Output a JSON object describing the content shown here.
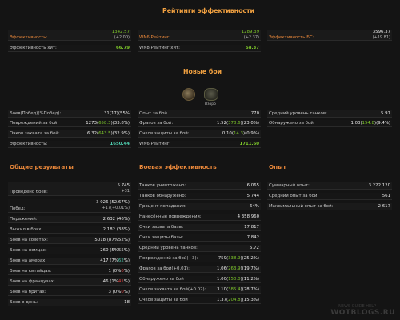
{
  "header": {
    "title": "Рейтинги эффективности"
  },
  "ratings": {
    "left": [
      {
        "label": "Эффективность:",
        "value": "1342.57",
        "delta": "(+2.00)",
        "value_color": "green",
        "label_color": "orange"
      },
      {
        "label": "Эффективность хит:",
        "value": "66.79",
        "delta": "",
        "value_color": "green",
        "label_color": "normal"
      }
    ],
    "mid": [
      {
        "label": "WN6 Рейтинг:",
        "value": "1289.39",
        "delta": "(+2.37)",
        "value_color": "green",
        "label_color": "orange"
      },
      {
        "label": "WN8 Рейтинг хит:",
        "value": "58.37",
        "delta": "",
        "value_color": "green",
        "label_color": "normal"
      }
    ],
    "right": [
      {
        "label": "Эффективность БС:",
        "value": "3596.37",
        "delta": "(+19.81)",
        "value_color": "normal",
        "label_color": "orange"
      }
    ]
  },
  "new_battles": {
    "title": "Новые бои",
    "icons": [
      "tank-icon",
      "emblem-icon"
    ],
    "icon_captions": [
      "",
      "Взорб"
    ],
    "left": [
      {
        "label": "Боев(Побед)(%Побед):",
        "value": "31(17)(55%"
      },
      {
        "label": "Повреждений за бой:",
        "value_a": "1273(",
        "value_hl": "658.3",
        "value_b": ")(33.8%)"
      },
      {
        "label": "Очков захвата за бой:",
        "value_a": "6.32(",
        "value_hl": "643.5",
        "value_b": ")(32.9%)"
      },
      {
        "label": "Эффективность:",
        "value": "1650.44",
        "value_color": "teal"
      }
    ],
    "mid": [
      {
        "label": "Опыт за бой",
        "value": "770"
      },
      {
        "label": "Фрагов за бой:",
        "value_a": "1.52(",
        "value_hl": "378.6",
        "value_b": ")(23.0%)"
      },
      {
        "label": "Очков защиты за бой:",
        "value_a": "0.10(",
        "value_hl": "14.3",
        "value_b": ")(0.9%)"
      },
      {
        "label": "WN6 Рейтинг:",
        "value": "1711.60",
        "value_color": "green"
      }
    ],
    "right": [
      {
        "label": "Средний уровень танков:",
        "value": "5.97"
      },
      {
        "label": "Обнаружено за бой:",
        "value_a": "1.03(",
        "value_hl": "154.8",
        "value_b": ")(9.4%)"
      }
    ]
  },
  "general": {
    "title": "Общие результаты",
    "rows": [
      {
        "label": "Проведено боёв:",
        "value": "5 745",
        "sub": "+31"
      },
      {
        "label": "Побед:",
        "value": "3 026 (52.67%)",
        "sub": "+17(+0.01%)"
      },
      {
        "label": "Поражений:",
        "value": "2 632 (46%)"
      },
      {
        "label": "Выжил в боях:",
        "value": "2 182 (38%)"
      },
      {
        "label": "Боев на советах:",
        "value": "5018 (87%52%)"
      },
      {
        "label": "Боев на немцах:",
        "value": "260 (5%55%)"
      },
      {
        "label": "Боев на амерах:",
        "value_a": "417 (7%",
        "value_hl": "62",
        "value_b": "%)",
        "hl_color": "teal"
      },
      {
        "label": "Боев на китайцах:",
        "value_a": "1 (0%",
        "value_hl": "0",
        "value_b": "%)",
        "hl_color": "red"
      },
      {
        "label": "Боев на французах:",
        "value_a": "46 (1%",
        "value_hl": "41",
        "value_b": "%)",
        "hl_color": "red"
      },
      {
        "label": "Боев на бритах:",
        "value_a": "3 (0%",
        "value_hl": "0",
        "value_b": "%)",
        "hl_color": "red"
      },
      {
        "label": "Боев в день:",
        "value": "18"
      }
    ]
  },
  "combat": {
    "title": "Боевая эффективность",
    "rows": [
      {
        "label": "Танков уничтожено:",
        "value": "6 065"
      },
      {
        "label": "Танков обнаружено:",
        "value": "5 744"
      },
      {
        "label": "Процент попадания:",
        "value": "64%"
      },
      {
        "label": "Нанесённые повреждения:",
        "value": "4 358 960"
      },
      {
        "label": "Очки захвата базы:",
        "value": "17 817"
      },
      {
        "label": "Очки защиты базы:",
        "value": "7 842"
      },
      {
        "label": "Средний уровень танков:",
        "value": "5.72"
      },
      {
        "label": "Повреждений за бой(+3):",
        "value_a": "759(",
        "value_hl": "338.9",
        "value_b": ")(25.2%)"
      },
      {
        "label": "Фрагов за бой(+0.01):",
        "value_a": "1.06(",
        "value_hl": "263.9",
        "value_b": ")(19.7%)"
      },
      {
        "label": "Обнаружено за бой",
        "value_a": "1.00(",
        "value_hl": "150.0",
        "value_b": ")(11.2%)"
      },
      {
        "label": "Очков захвата за бой(+0.02):",
        "value_a": "3.10(",
        "value_hl": "385.4",
        "value_b": ")(28.7%)"
      },
      {
        "label": "Очков защиты за бой",
        "value_a": "1.37(",
        "value_hl": "204.8",
        "value_b": ")(15.3%)"
      }
    ]
  },
  "experience": {
    "title": "Опыт",
    "rows": [
      {
        "label": "Суммарный опыт:",
        "value": "3 222 120"
      },
      {
        "label": "Средний опыт за бой:",
        "value": "561"
      },
      {
        "label": "Максимальный опыт за бой:",
        "value": "2 617"
      }
    ]
  },
  "watermark": {
    "top": "NEWS GUIDE HELP",
    "main": "WOTBLOGS.RU"
  },
  "colors": {
    "accent": "#e8873a",
    "title": "#f0a040",
    "green": "#7ec82a",
    "teal": "#4fcfb0",
    "red": "#e84040",
    "background": "#141414"
  }
}
